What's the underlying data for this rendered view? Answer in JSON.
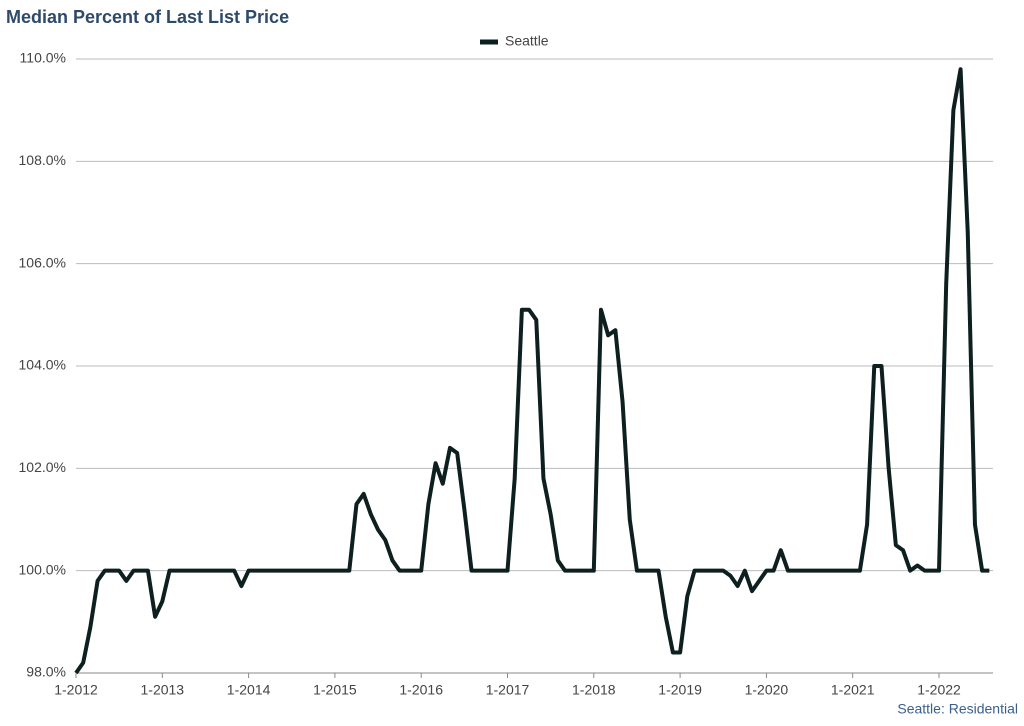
{
  "chart_data": {
    "type": "line",
    "title": "Median Percent of Last List Price",
    "footer": "Seattle: Residential",
    "categories": [
      "1-2012",
      null,
      null,
      null,
      null,
      null,
      null,
      null,
      null,
      null,
      null,
      null,
      "1-2013",
      null,
      null,
      null,
      null,
      null,
      null,
      null,
      null,
      null,
      null,
      null,
      "1-2014",
      null,
      null,
      null,
      null,
      null,
      null,
      null,
      null,
      null,
      null,
      null,
      "1-2015",
      null,
      null,
      null,
      null,
      null,
      null,
      null,
      null,
      null,
      null,
      null,
      "1-2016",
      null,
      null,
      null,
      null,
      null,
      null,
      null,
      null,
      null,
      null,
      null,
      "1-2017",
      null,
      null,
      null,
      null,
      null,
      null,
      null,
      null,
      null,
      null,
      null,
      "1-2018",
      null,
      null,
      null,
      null,
      null,
      null,
      null,
      null,
      null,
      null,
      null,
      "1-2019",
      null,
      null,
      null,
      null,
      null,
      null,
      null,
      null,
      null,
      null,
      null,
      "1-2020",
      null,
      null,
      null,
      null,
      null,
      null,
      null,
      null,
      null,
      null,
      null,
      "1-2021",
      null,
      null,
      null,
      null,
      null,
      null,
      null,
      null,
      null,
      null,
      null,
      "1-2022",
      null,
      null,
      null,
      null,
      null,
      null,
      null
    ],
    "series": [
      {
        "name": "Seattle",
        "color": "#0d1f1f",
        "values": [
          98.0,
          98.2,
          98.9,
          99.8,
          100,
          100,
          100,
          99.8,
          100,
          100,
          100,
          99.1,
          99.4,
          100,
          100,
          100,
          100,
          100,
          100,
          100,
          100,
          100,
          100,
          99.7,
          100,
          100,
          100,
          100,
          100,
          100,
          100,
          100,
          100,
          100,
          100,
          100,
          100,
          100,
          100,
          101.3,
          101.5,
          101.1,
          100.8,
          100.6,
          100.2,
          100,
          100,
          100,
          100,
          101.3,
          102.1,
          101.7,
          102.4,
          102.3,
          101.2,
          100,
          100,
          100,
          100,
          100,
          100,
          101.8,
          105.1,
          105.1,
          104.9,
          101.8,
          101.1,
          100.2,
          100,
          100,
          100,
          100,
          100,
          105.1,
          104.6,
          104.7,
          103.3,
          101.0,
          100,
          100,
          100,
          100,
          99.1,
          98.4,
          98.4,
          99.5,
          100,
          100,
          100,
          100,
          100,
          99.9,
          99.7,
          100,
          99.6,
          99.8,
          100,
          100,
          100.4,
          100,
          100,
          100,
          100,
          100,
          100,
          100,
          100,
          100,
          100,
          100,
          100.9,
          104.0,
          104.0,
          102.0,
          100.5,
          100.4,
          100,
          100.1,
          100,
          100,
          100,
          105.6,
          109.0,
          109.8,
          106.6,
          100.9,
          100,
          100
        ]
      }
    ],
    "ylim": [
      98,
      110
    ],
    "yticks": [
      {
        "value": 98,
        "label": "98.0%"
      },
      {
        "value": 100,
        "label": "100.0%"
      },
      {
        "value": 102,
        "label": "102.0%"
      },
      {
        "value": 104,
        "label": "104.0%"
      },
      {
        "value": 106,
        "label": "106.0%"
      },
      {
        "value": 108,
        "label": "108.0%"
      },
      {
        "value": 110,
        "label": "110.0%"
      }
    ],
    "grid": true
  }
}
